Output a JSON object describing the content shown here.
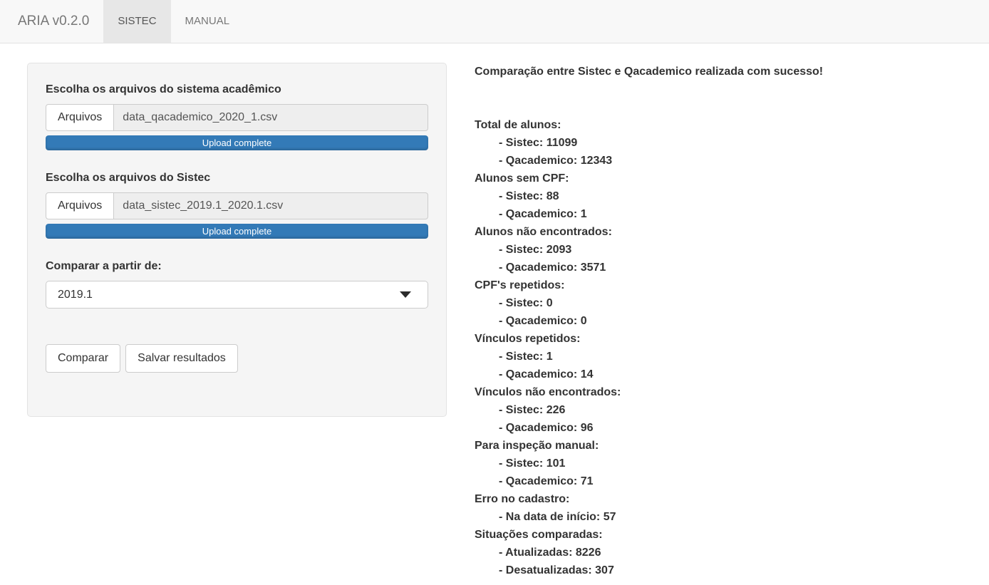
{
  "navbar": {
    "brand": "ARIA v0.2.0",
    "tabs": [
      {
        "label": "SISTEC",
        "active": true
      },
      {
        "label": "MANUAL",
        "active": false
      }
    ]
  },
  "sidebar": {
    "file_inputs": [
      {
        "label": "Escolha os arquivos do sistema acadêmico",
        "button": "Arquivos",
        "filename": "data_qacademico_2020_1.csv",
        "progress": "Upload complete"
      },
      {
        "label": "Escolha os arquivos do Sistec",
        "button": "Arquivos",
        "filename": "data_sistec_2019.1_2020.1.csv",
        "progress": "Upload complete"
      }
    ],
    "select": {
      "label": "Comparar a partir de:",
      "value": "2019.1"
    },
    "buttons": [
      {
        "label": "Comparar"
      },
      {
        "label": "Salvar resultados"
      }
    ]
  },
  "results": {
    "title": "Comparação entre Sistec e Qacademico realizada com sucesso!",
    "sections": [
      {
        "header": "Total de alunos:",
        "items": [
          "- Sistec: 11099",
          "- Qacademico: 12343"
        ]
      },
      {
        "header": "Alunos sem CPF:",
        "items": [
          "- Sistec: 88",
          "- Qacademico: 1"
        ]
      },
      {
        "header": "Alunos não encontrados:",
        "items": [
          "- Sistec: 2093",
          "- Qacademico: 3571"
        ]
      },
      {
        "header": "CPF's repetidos:",
        "items": [
          "- Sistec: 0",
          "- Qacademico: 0"
        ]
      },
      {
        "header": "Vínculos repetidos:",
        "items": [
          "- Sistec: 1",
          "- Qacademico: 14"
        ]
      },
      {
        "header": "Vínculos não encontrados:",
        "items": [
          "- Sistec: 226",
          "- Qacademico: 96"
        ]
      },
      {
        "header": "Para inspeção manual:",
        "items": [
          "- Sistec: 101",
          "- Qacademico: 71"
        ]
      },
      {
        "header": "Erro no cadastro:",
        "items": [
          "- Na data de início: 57"
        ]
      },
      {
        "header": "Situações comparadas:",
        "items": [
          "- Atualizadas: 8226",
          "- Desatualizadas: 307"
        ]
      }
    ]
  },
  "icons": {
    "select_caret": "▼"
  },
  "colors": {
    "accent_blue": "#337ab7",
    "navbar_bg": "#f8f8f8",
    "active_tab_bg": "#e7e7e7",
    "well_bg": "#f5f5f5",
    "text": "#333333"
  }
}
